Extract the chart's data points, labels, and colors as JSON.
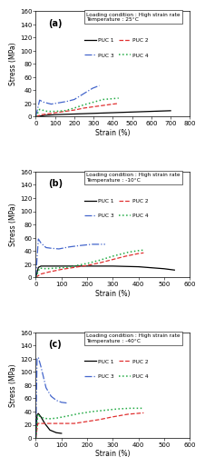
{
  "panels": [
    {
      "label": "(a)",
      "temp_text": "Temperature : 25°C",
      "xlim": [
        0,
        800
      ],
      "xticks": [
        0,
        100,
        200,
        300,
        400,
        500,
        600,
        700,
        800
      ],
      "ylim": [
        0,
        160
      ],
      "yticks": [
        0,
        20,
        40,
        60,
        80,
        100,
        120,
        140,
        160
      ],
      "curves": {
        "PUC 1": {
          "color": "#000000",
          "ls": "solid",
          "lw": 0.9,
          "x": [
            0,
            50,
            100,
            200,
            300,
            400,
            500,
            600,
            700
          ],
          "y": [
            0,
            2,
            3,
            4,
            5,
            6,
            7,
            8,
            9
          ]
        },
        "PUC 2": {
          "color": "#e03030",
          "ls": "dashed",
          "lw": 0.9,
          "x": [
            0,
            30,
            80,
            150,
            200,
            250,
            300,
            350,
            400,
            430
          ],
          "y": [
            0,
            3,
            5,
            8,
            10,
            13,
            15,
            17,
            19,
            20
          ]
        },
        "PUC 3": {
          "color": "#4466cc",
          "ls": "dashdot",
          "lw": 0.9,
          "x": [
            0,
            20,
            40,
            80,
            120,
            160,
            200,
            250,
            295,
            330
          ],
          "y": [
            0,
            25,
            22,
            19,
            21,
            23,
            26,
            35,
            43,
            47
          ]
        },
        "PUC 4": {
          "color": "#22aa44",
          "ls": "dotted",
          "lw": 1.1,
          "x": [
            0,
            20,
            60,
            100,
            150,
            200,
            250,
            300,
            350,
            430
          ],
          "y": [
            0,
            11,
            8,
            8,
            9,
            13,
            18,
            22,
            26,
            28
          ]
        }
      }
    },
    {
      "label": "(b)",
      "temp_text": "Temperature : -10°C",
      "xlim": [
        0,
        600
      ],
      "xticks": [
        0,
        100,
        200,
        300,
        400,
        500,
        600
      ],
      "ylim": [
        0,
        160
      ],
      "yticks": [
        0,
        20,
        40,
        60,
        80,
        100,
        120,
        140,
        160
      ],
      "curves": {
        "PUC 1": {
          "color": "#000000",
          "ls": "solid",
          "lw": 0.9,
          "x": [
            0,
            10,
            20,
            50,
            100,
            200,
            300,
            400,
            500,
            540
          ],
          "y": [
            0,
            15,
            17,
            17,
            17,
            17,
            17,
            16,
            13,
            11
          ]
        },
        "PUC 2": {
          "color": "#e03030",
          "ls": "dashed",
          "lw": 0.9,
          "x": [
            0,
            20,
            50,
            100,
            150,
            200,
            250,
            300,
            350,
            400,
            420
          ],
          "y": [
            0,
            5,
            8,
            12,
            15,
            18,
            22,
            27,
            32,
            36,
            37
          ]
        },
        "PUC 3": {
          "color": "#4466cc",
          "ls": "dashdot",
          "lw": 0.9,
          "x": [
            0,
            10,
            20,
            40,
            60,
            90,
            130,
            170,
            220,
            270
          ],
          "y": [
            0,
            58,
            52,
            45,
            44,
            43,
            46,
            48,
            50,
            50
          ]
        },
        "PUC 4": {
          "color": "#22aa44",
          "ls": "dotted",
          "lw": 1.1,
          "x": [
            0,
            15,
            40,
            80,
            120,
            160,
            200,
            250,
            300,
            360,
            410,
            420
          ],
          "y": [
            0,
            14,
            13,
            14,
            15,
            18,
            21,
            26,
            32,
            38,
            41,
            41
          ]
        }
      }
    },
    {
      "label": "(c)",
      "temp_text": "Temperature : -40°C",
      "xlim": [
        0,
        600
      ],
      "xticks": [
        0,
        100,
        200,
        300,
        400,
        500,
        600
      ],
      "ylim": [
        0,
        160
      ],
      "yticks": [
        0,
        20,
        40,
        60,
        80,
        100,
        120,
        140,
        160
      ],
      "curves": {
        "PUC 1": {
          "color": "#000000",
          "ls": "solid",
          "lw": 0.9,
          "x": [
            0,
            5,
            10,
            20,
            35,
            55,
            80,
            100
          ],
          "y": [
            0,
            35,
            37,
            32,
            22,
            12,
            8,
            7
          ]
        },
        "PUC 2": {
          "color": "#e03030",
          "ls": "dashed",
          "lw": 0.9,
          "x": [
            0,
            8,
            20,
            50,
            100,
            150,
            200,
            250,
            300,
            360,
            420
          ],
          "y": [
            0,
            22,
            22,
            22,
            22,
            22,
            25,
            28,
            32,
            36,
            38
          ]
        },
        "PUC 3": {
          "color": "#4466cc",
          "ls": "dashdot",
          "lw": 0.9,
          "x": [
            0,
            5,
            10,
            20,
            40,
            60,
            80,
            100,
            120
          ],
          "y": [
            0,
            120,
            122,
            108,
            76,
            63,
            57,
            54,
            53
          ]
        },
        "PUC 4": {
          "color": "#22aa44",
          "ls": "dotted",
          "lw": 1.1,
          "x": [
            0,
            8,
            15,
            30,
            50,
            80,
            120,
            170,
            220,
            270,
            320,
            370,
            420
          ],
          "y": [
            0,
            36,
            33,
            30,
            29,
            30,
            33,
            37,
            40,
            42,
            44,
            45,
            45
          ]
        }
      }
    }
  ],
  "loading_text": "Loading condition : High strain rate",
  "ylabel": "Stress (MPa)",
  "xlabel": "Strain (%)",
  "legend_order": [
    "PUC 1",
    "PUC 2",
    "PUC 3",
    "PUC 4"
  ],
  "bg_color": "#ffffff"
}
